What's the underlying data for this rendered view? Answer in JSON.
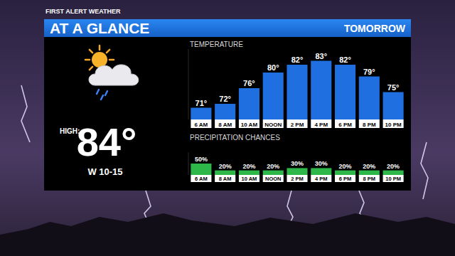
{
  "header": {
    "brand": "FIRST ALERT WEATHER",
    "title": "AT A GLANCE",
    "day": "TOMORROW"
  },
  "summary": {
    "high_label": "HIGH:",
    "high": "84°",
    "wind": "W 10-15"
  },
  "chart_data": [
    {
      "type": "bar",
      "title": "TEMPERATURE",
      "categories": [
        "6 AM",
        "8 AM",
        "10 AM",
        "NOON",
        "2 PM",
        "4 PM",
        "6 PM",
        "8 PM",
        "10 PM"
      ],
      "values": [
        71,
        72,
        76,
        80,
        82,
        83,
        82,
        79,
        75
      ],
      "value_labels": [
        "71°",
        "72°",
        "76°",
        "80°",
        "82°",
        "83°",
        "82°",
        "79°",
        "75°"
      ],
      "color": "#1f6fe0",
      "ylim": [
        68,
        86
      ],
      "data_labels": true,
      "tick_labels": "x"
    },
    {
      "type": "bar",
      "title": "PRECIPITATION CHANCES",
      "categories": [
        "6 AM",
        "8 AM",
        "10 AM",
        "NOON",
        "2 PM",
        "4 PM",
        "6 PM",
        "8 PM",
        "10 PM"
      ],
      "values": [
        50,
        20,
        20,
        20,
        30,
        30,
        20,
        20,
        20
      ],
      "value_labels": [
        "50%",
        "20%",
        "20%",
        "20%",
        "30%",
        "30%",
        "20%",
        "20%",
        "20%"
      ],
      "color": "#2fb84a",
      "ylim": [
        0,
        100
      ],
      "data_labels": true,
      "tick_labels": "x"
    }
  ]
}
